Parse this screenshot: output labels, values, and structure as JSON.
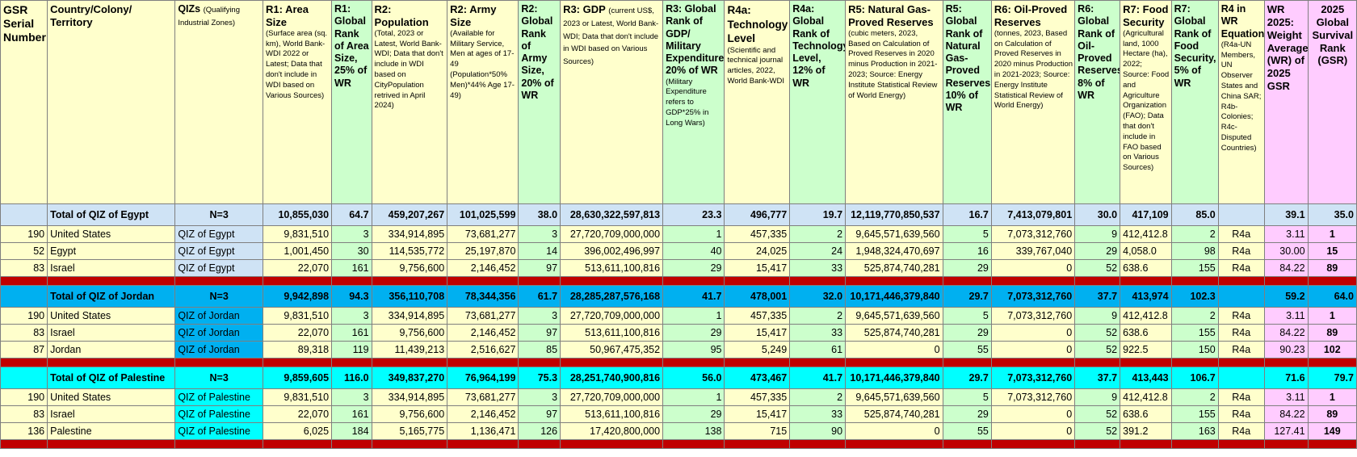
{
  "headers": {
    "gsr_serial": "GSR Serial Number",
    "country": "Country/Colony/ Territory",
    "qiz_main": "QIZs",
    "qiz_sub": "(Qualifying Industrial Zones)",
    "r1_main": "R1: Area Size",
    "r1_sub": "(Surface area (sq. km), World Bank-WDI 2022 or Latest; Data that don't include in WDI based on Various Sources)",
    "r1_rank": "R1: Global Rank of Area Size, 25% of WR",
    "r2_main": "R2: Population",
    "r2_sub": "(Total, 2023 or Latest, World Bank-WDI; Data that don't include in WDI based on CityPopulation retrived in April 2024)",
    "r2_army_main": "R2: Army Size",
    "r2_army_sub": "(Available for Military Service, Men at ages of 17-49 (Population*50% Men)*44% Age 17-49)",
    "r2_rank": "R2: Global Rank of Army Size, 20% of WR",
    "r3_main": "R3: GDP",
    "r3_sub": "(current US$, 2023 or Latest, World Bank-WDI; Data that don't include in WDI based on Various Sources)",
    "r3_rank_main": "R3: Global Rank of GDP/ Military Expenditure, 20% of WR",
    "r3_rank_sub": "(Military Expenditure refers to GDP*25% in Long Wars)",
    "r4a_main": "R4a: Technology Level",
    "r4a_sub": "(Scientific and technical journal articles, 2022, World Bank-WDI",
    "r4a_rank": "R4a: Global Rank of Technology Level, 12% of WR",
    "r5_main": "R5: Natural Gas-Proved Reserves",
    "r5_sub": "(cubic meters, 2023, Based on Calculation of Proved Reserves in 2020 minus Production in 2021-2023; Source: Energy Institute Statistical Review of World Energy)",
    "r5_rank": "R5: Global Rank of Natural Gas-Proved Reserves, 10% of WR",
    "r6_main": "R6: Oil-Proved Reserves",
    "r6_sub": "(tonnes, 2023, Based on Calculation of Proved Reserves in 2020 minus Production in 2021-2023; Source: Energy Institute Statistical Review of World Energy)",
    "r6_rank": "R6: Global Rank of Oil-Proved Reserves, 8% of WR",
    "r7_main": "R7: Food Security",
    "r7_sub": "(Agricultural land, 1000 Hectare (ha), 2022; Source: Food and Agriculture Organization (FAO); Data that don't include in FAO based on Various Sources)",
    "r7_rank": "R7: Global Rank of Food Security, 5% of WR",
    "r4_eq_main": "R4 in WR Equation",
    "r4_eq_sub": "(R4a-UN Members, UN Observer States and China SAR; R4b-Colonies; R4c-Disputed Countries)",
    "wr": "WR 2025: Weight Average (WR) of 2025 GSR",
    "gsr": "2025 Global Survival Rank (GSR)"
  },
  "groups": [
    {
      "total": {
        "label": "Total of QIZ of Egypt",
        "n": "N=3",
        "area": "10,855,030",
        "area_rank": "64.7",
        "pop": "459,207,267",
        "army": "101,025,599",
        "army_rank": "38.0",
        "gdp": "28,630,322,597,813",
        "gdp_rank": "23.3",
        "tech": "496,777",
        "tech_rank": "19.7",
        "gas": "12,119,770,850,537",
        "gas_rank": "16.7",
        "oil": "7,413,079,801",
        "oil_rank": "30.0",
        "food": "417,109",
        "food_rank": "85.0",
        "eq": "",
        "wr": "39.1",
        "gsr": "35.0"
      },
      "rows": [
        {
          "serial": "190",
          "country": "United States",
          "qiz": "QIZ of Egypt",
          "area": "9,831,510",
          "area_rank": "3",
          "pop": "334,914,895",
          "army": "73,681,277",
          "army_rank": "3",
          "gdp": "27,720,709,000,000",
          "gdp_rank": "1",
          "tech": "457,335",
          "tech_rank": "2",
          "gas": "9,645,571,639,560",
          "gas_rank": "5",
          "oil": "7,073,312,760",
          "oil_rank": "9",
          "food": "412,412.8",
          "food_rank": "2",
          "eq": "R4a",
          "wr": "3.11",
          "gsr": "1"
        },
        {
          "serial": "52",
          "country": "Egypt",
          "qiz": "QIZ of Egypt",
          "area": "1,001,450",
          "area_rank": "30",
          "pop": "114,535,772",
          "army": "25,197,870",
          "army_rank": "14",
          "gdp": "396,002,496,997",
          "gdp_rank": "40",
          "tech": "24,025",
          "tech_rank": "24",
          "gas": "1,948,324,470,697",
          "gas_rank": "16",
          "oil": "339,767,040",
          "oil_rank": "29",
          "food": "4,058.0",
          "food_rank": "98",
          "eq": "R4a",
          "wr": "30.00",
          "gsr": "15"
        },
        {
          "serial": "83",
          "country": "Israel",
          "qiz": "QIZ of Egypt",
          "area": "22,070",
          "area_rank": "161",
          "pop": "9,756,600",
          "army": "2,146,452",
          "army_rank": "97",
          "gdp": "513,611,100,816",
          "gdp_rank": "29",
          "tech": "15,417",
          "tech_rank": "33",
          "gas": "525,874,740,281",
          "gas_rank": "29",
          "oil": "0",
          "oil_rank": "52",
          "food": "638.6",
          "food_rank": "155",
          "eq": "R4a",
          "wr": "84.22",
          "gsr": "89"
        }
      ]
    },
    {
      "total": {
        "label": "Total of QIZ of Jordan",
        "n": "N=3",
        "area": "9,942,898",
        "area_rank": "94.3",
        "pop": "356,110,708",
        "army": "78,344,356",
        "army_rank": "61.7",
        "gdp": "28,285,287,576,168",
        "gdp_rank": "41.7",
        "tech": "478,001",
        "tech_rank": "32.0",
        "gas": "10,171,446,379,840",
        "gas_rank": "29.7",
        "oil": "7,073,312,760",
        "oil_rank": "37.7",
        "food": "413,974",
        "food_rank": "102.3",
        "eq": "",
        "wr": "59.2",
        "gsr": "64.0"
      },
      "rows": [
        {
          "serial": "190",
          "country": "United States",
          "qiz": "QIZ of Jordan",
          "area": "9,831,510",
          "area_rank": "3",
          "pop": "334,914,895",
          "army": "73,681,277",
          "army_rank": "3",
          "gdp": "27,720,709,000,000",
          "gdp_rank": "1",
          "tech": "457,335",
          "tech_rank": "2",
          "gas": "9,645,571,639,560",
          "gas_rank": "5",
          "oil": "7,073,312,760",
          "oil_rank": "9",
          "food": "412,412.8",
          "food_rank": "2",
          "eq": "R4a",
          "wr": "3.11",
          "gsr": "1"
        },
        {
          "serial": "83",
          "country": "Israel",
          "qiz": "QIZ of Jordan",
          "area": "22,070",
          "area_rank": "161",
          "pop": "9,756,600",
          "army": "2,146,452",
          "army_rank": "97",
          "gdp": "513,611,100,816",
          "gdp_rank": "29",
          "tech": "15,417",
          "tech_rank": "33",
          "gas": "525,874,740,281",
          "gas_rank": "29",
          "oil": "0",
          "oil_rank": "52",
          "food": "638.6",
          "food_rank": "155",
          "eq": "R4a",
          "wr": "84.22",
          "gsr": "89"
        },
        {
          "serial": "87",
          "country": "Jordan",
          "qiz": "QIZ of Jordan",
          "area": "89,318",
          "area_rank": "119",
          "pop": "11,439,213",
          "army": "2,516,627",
          "army_rank": "85",
          "gdp": "50,967,475,352",
          "gdp_rank": "95",
          "tech": "5,249",
          "tech_rank": "61",
          "gas": "0",
          "gas_rank": "55",
          "oil": "0",
          "oil_rank": "52",
          "food": "922.5",
          "food_rank": "150",
          "eq": "R4a",
          "wr": "90.23",
          "gsr": "102"
        }
      ]
    },
    {
      "total": {
        "label": "Total of QIZ of Palestine",
        "n": "N=3",
        "area": "9,859,605",
        "area_rank": "116.0",
        "pop": "349,837,270",
        "army": "76,964,199",
        "army_rank": "75.3",
        "gdp": "28,251,740,900,816",
        "gdp_rank": "56.0",
        "tech": "473,467",
        "tech_rank": "41.7",
        "gas": "10,171,446,379,840",
        "gas_rank": "29.7",
        "oil": "7,073,312,760",
        "oil_rank": "37.7",
        "food": "413,443",
        "food_rank": "106.7",
        "eq": "",
        "wr": "71.6",
        "gsr": "79.7"
      },
      "rows": [
        {
          "serial": "190",
          "country": "United States",
          "qiz": "QIZ of Palestine",
          "area": "9,831,510",
          "area_rank": "3",
          "pop": "334,914,895",
          "army": "73,681,277",
          "army_rank": "3",
          "gdp": "27,720,709,000,000",
          "gdp_rank": "1",
          "tech": "457,335",
          "tech_rank": "2",
          "gas": "9,645,571,639,560",
          "gas_rank": "5",
          "oil": "7,073,312,760",
          "oil_rank": "9",
          "food": "412,412.8",
          "food_rank": "2",
          "eq": "R4a",
          "wr": "3.11",
          "gsr": "1"
        },
        {
          "serial": "83",
          "country": "Israel",
          "qiz": "QIZ of Palestine",
          "area": "22,070",
          "area_rank": "161",
          "pop": "9,756,600",
          "army": "2,146,452",
          "army_rank": "97",
          "gdp": "513,611,100,816",
          "gdp_rank": "29",
          "tech": "15,417",
          "tech_rank": "33",
          "gas": "525,874,740,281",
          "gas_rank": "29",
          "oil": "0",
          "oil_rank": "52",
          "food": "638.6",
          "food_rank": "155",
          "eq": "R4a",
          "wr": "84.22",
          "gsr": "89"
        },
        {
          "serial": "136",
          "country": "Palestine",
          "qiz": "QIZ of Palestine",
          "area": "6,025",
          "area_rank": "184",
          "pop": "5,165,775",
          "army": "1,136,471",
          "army_rank": "126",
          "gdp": "17,420,800,000",
          "gdp_rank": "138",
          "tech": "715",
          "tech_rank": "90",
          "gas": "0",
          "gas_rank": "55",
          "oil": "0",
          "oil_rank": "52",
          "food": "391.2",
          "food_rank": "163",
          "eq": "R4a",
          "wr": "127.41",
          "gsr": "149"
        }
      ]
    }
  ]
}
